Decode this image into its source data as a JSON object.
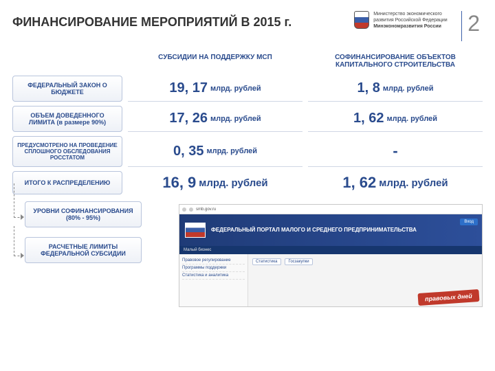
{
  "header": {
    "title": "ФИНАНСИРОВАНИЕ МЕРОПРИЯТИЙ В 2015 г.",
    "ministry_line1": "Министерство экономического",
    "ministry_line2": "развития Российской Федерации",
    "ministry_line3": "Минэкономразвития России",
    "page_number": "2"
  },
  "columns": {
    "col1": "СУБСИДИИ НА ПОДДЕРЖКУ МСП",
    "col2_line1": "СОФИНАНСИРОВАНИЕ ОБЪЕКТОВ",
    "col2_line2": "КАПИТАЛЬНОГО СТРОИТЕЛЬСТВА"
  },
  "rows": {
    "r1": {
      "label": "ФЕДЕРАЛЬНЫЙ ЗАКОН О БЮДЖЕТЕ",
      "v1_num": "19, 17",
      "v1_unit": "млрд. рублей",
      "v2_num": "1, 8",
      "v2_unit": "млрд. рублей"
    },
    "r2": {
      "label": "ОБЪЕМ ДОВЕДЕННОГО ЛИМИТА (в размере 90%)",
      "v1_num": "17, 26",
      "v1_unit": "млрд. рублей",
      "v2_num": "1, 62",
      "v2_unit": "млрд. рублей"
    },
    "r3": {
      "label": "ПРЕДУСМОТРЕНО НА ПРОВЕДЕНИЕ СПЛОШНОГО ОБСЛЕДОВАНИЯ РОССТАТОМ",
      "v1_num": "0, 35",
      "v1_unit": "млрд. рублей",
      "v2_dash": "-"
    },
    "r4": {
      "label": "ИТОГО К РАСПРЕДЕЛЕНИЮ",
      "v1_num": "16, 9",
      "v1_unit": "млрд. рублей",
      "v2_num": "1, 62",
      "v2_unit": "млрд. рублей"
    }
  },
  "flow": {
    "box1_line1": "УРОВНИ СОФИНАНСИРОВАНИЯ",
    "box1_line2": "(80% - 95%)",
    "box2_line1": "РАСЧЕТНЫЕ ЛИМИТЫ",
    "box2_line2": "ФЕДЕРАЛЬНОЙ СУБСИДИИ"
  },
  "screenshot": {
    "url": "smb.gov.ru",
    "banner_title": "ФЕДЕРАЛЬНЫЙ ПОРТАЛ МАЛОГО И СРЕДНЕГО ПРЕДПРИНИМАТЕЛЬСТВА",
    "login": "Вход",
    "nav": "Малый бизнес",
    "side1": "Правовое регулирование",
    "side2": "Программы поддержки",
    "side3": "Статистика и аналитика",
    "tag1": "Статистика",
    "tag2": "Госзакупки",
    "rot": "правовых дней"
  },
  "colors": {
    "primary_text": "#2a4b8d",
    "page_num": "#888888",
    "cell_border": "#b8c4dc",
    "banner_bg_from": "#1f3b77",
    "banner_bg_to": "#2d4f9a",
    "accent_red": "#c0392b"
  }
}
